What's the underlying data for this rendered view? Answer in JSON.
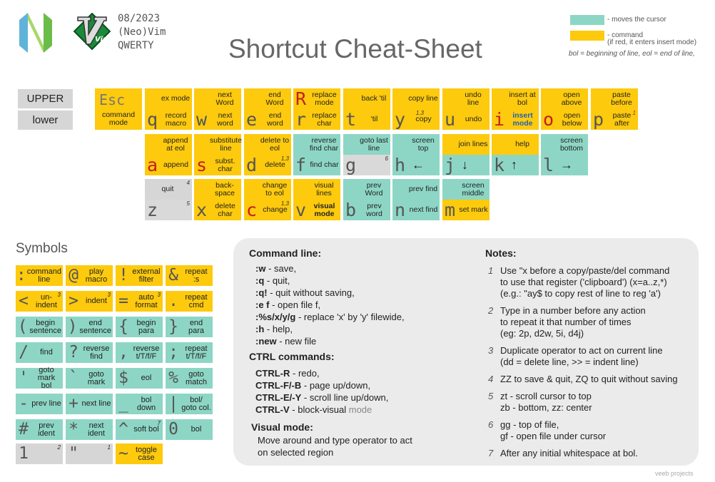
{
  "header": {
    "date": "08/2023",
    "editor": "(Neo)Vim",
    "layout": "QWERTY",
    "title": "Shortcut Cheat-Sheet",
    "logos": {
      "neovim": "neovim-logo",
      "vim": "vim-logo",
      "vim_text": "Vim"
    }
  },
  "legend": {
    "green_label": "- moves the cursor",
    "yellow_label": "- command",
    "yellow_sub": "(if red, it enters insert mode)",
    "bol_eol": "bol = beginning of line, eol = end of line,",
    "colors": {
      "green": "#8dd6c5",
      "yellow": "#fdca0d",
      "red": "#c41d1d"
    }
  },
  "case_labels": {
    "upper": "UPPER",
    "lower": "lower"
  },
  "keys": [
    {
      "id": "esc",
      "upper": "Esc",
      "lower": "command mode",
      "color": "y"
    },
    {
      "id": "q",
      "upper_text": "ex mode",
      "key": "q",
      "lower_text": "record macro",
      "color_u": "y",
      "color_l": "y"
    },
    {
      "id": "w",
      "upper_text": "next Word",
      "key": "w",
      "lower_text": "next word",
      "color_u": "y",
      "color_l": "y"
    },
    {
      "id": "e",
      "upper_text": "end Word",
      "key": "e",
      "lower_text": "end word",
      "color_u": "y",
      "color_l": "y"
    },
    {
      "id": "r",
      "upper_key": "R",
      "upper_text": "replace mode",
      "key": "r",
      "lower_text": "replace char",
      "color_u": "y",
      "color_l": "y"
    },
    {
      "id": "t",
      "upper_text": "back 'til",
      "key": "t",
      "lower_text": "'til",
      "color_u": "y",
      "color_l": "y"
    },
    {
      "id": "y",
      "upper_text": "copy line",
      "key": "y",
      "lower_text": "copy",
      "sup": "1,3",
      "color_u": "y",
      "color_l": "y"
    },
    {
      "id": "u",
      "upper_text": "undo line",
      "key": "u",
      "lower_text": "undo",
      "color_u": "y",
      "color_l": "y"
    },
    {
      "id": "i",
      "upper_text": "insert at bol",
      "key": "i",
      "lower_text": "insert mode",
      "color_u": "y",
      "color_l": "y"
    },
    {
      "id": "o",
      "upper_text": "open above",
      "key": "o",
      "lower_text": "open below",
      "color_u": "y",
      "color_l": "y"
    },
    {
      "id": "p",
      "upper_text": "paste before",
      "key": "p",
      "lower_text": "paste after",
      "sup": "1",
      "color_u": "y",
      "color_l": "y"
    }
  ],
  "row1": {
    "esc_upper": "Esc",
    "esc_lower": "command mode",
    "q": {
      "u": "ex mode",
      "k": "q",
      "l": "record macro"
    },
    "w": {
      "u": "next Word",
      "k": "w",
      "l": "next word"
    },
    "e": {
      "u": "end Word",
      "k": "e",
      "l": "end word"
    },
    "r": {
      "uk": "R",
      "u": "replace mode",
      "k": "r",
      "l": "replace char"
    },
    "t": {
      "u": "back 'til",
      "k": "t",
      "l": "'til"
    },
    "y": {
      "u": "copy line",
      "k": "y",
      "l": "copy",
      "sup": "1,3"
    },
    "u": {
      "u": "undo line",
      "k": "u",
      "l": "undo"
    },
    "i": {
      "u": "insert at bol",
      "k": "i",
      "l": "insert mode"
    },
    "o": {
      "u": "open above",
      "k": "o",
      "l": "open below"
    },
    "p": {
      "u": "paste before",
      "k": "p",
      "l": "paste after",
      "sup": "1"
    }
  },
  "row2": {
    "a": {
      "u": "append at eol",
      "k": "a",
      "l": "append"
    },
    "s": {
      "u": "substitute line",
      "k": "s",
      "l": "subst. char"
    },
    "d": {
      "u": "delete to eol",
      "k": "d",
      "l": "delete",
      "sup": "1,3"
    },
    "f": {
      "u": "reverse find char",
      "k": "f",
      "l": "find char"
    },
    "g": {
      "u": "goto last line",
      "k": "g",
      "sup": "6"
    },
    "h": {
      "u": "screen top",
      "k": "h",
      "arrow": "←"
    },
    "j": {
      "u": "join lines",
      "k": "j",
      "arrow": "↓"
    },
    "k": {
      "u": "help",
      "k": "k",
      "arrow": "↑"
    },
    "l": {
      "u": "screen bottom",
      "k": "l",
      "arrow": "→"
    }
  },
  "row3": {
    "z": {
      "u": "quit",
      "usup": "4",
      "k": "z",
      "sup": "5"
    },
    "x": {
      "u": "back-space",
      "k": "x",
      "l": "delete char"
    },
    "c": {
      "u": "change to eol",
      "k": "c",
      "l": "change",
      "sup": "1,3"
    },
    "v": {
      "u": "visual lines",
      "k": "v",
      "l": "visual mode"
    },
    "b": {
      "u": "prev Word",
      "k": "b",
      "l": "prev word"
    },
    "n": {
      "u": "prev find",
      "k": "n",
      "l": "next find"
    },
    "m": {
      "u": "screen middle",
      "k": "m",
      "l": "set mark"
    }
  },
  "symbols": {
    "title": "Symbols",
    "items": [
      {
        "k": ":",
        "t": "command line"
      },
      {
        "k": "@",
        "t": "play macro"
      },
      {
        "k": "!",
        "t": "external filter"
      },
      {
        "k": "&",
        "t": "repeat :s"
      },
      {
        "k": "<",
        "t": "un-indent",
        "sup": "3"
      },
      {
        "k": ">",
        "t": "indent",
        "sup": "3"
      },
      {
        "k": "=",
        "t": "auto format",
        "sup": "3"
      },
      {
        "k": ".",
        "t": "repeat cmd"
      },
      {
        "k": "(",
        "t": "begin sentence"
      },
      {
        "k": ")",
        "t": "end sentence"
      },
      {
        "k": "{",
        "t": "begin para"
      },
      {
        "k": "}",
        "t": "end para"
      },
      {
        "k": "/",
        "t": "find"
      },
      {
        "k": "?",
        "t": "reverse find"
      },
      {
        "k": ",",
        "t": "reverse t/T/f/F"
      },
      {
        "k": ";",
        "t": "repeat t/T/f/F"
      },
      {
        "k": "'",
        "t": "goto mark bol"
      },
      {
        "k": "`",
        "t": "goto mark"
      },
      {
        "k": "$",
        "t": "eol"
      },
      {
        "k": "%",
        "t": "goto match"
      },
      {
        "k": "-",
        "t": "prev line"
      },
      {
        "k": "+",
        "t": "next line"
      },
      {
        "k": "_",
        "t": "bol down"
      },
      {
        "k": "|",
        "t": "bol/ goto col."
      },
      {
        "k": "#",
        "t": "prev ident"
      },
      {
        "k": "*",
        "t": "next ident"
      },
      {
        "k": "^",
        "t": "soft bol",
        "sup": "7"
      },
      {
        "k": "0",
        "t": "bol"
      },
      {
        "k": "1",
        "t": "",
        "sup": "2"
      },
      {
        "k": "\"",
        "t": "",
        "sup": "1"
      },
      {
        "k": "~",
        "t": "toggle case"
      }
    ]
  },
  "command_line": {
    "title": "Command line:",
    "lines": [
      {
        "c": ":w",
        "d": " - save,"
      },
      {
        "c": ":q",
        "d": " - quit,"
      },
      {
        "c": ":q!",
        "d": " - quit without saving,"
      },
      {
        "c": ":e f",
        "d": " - open file f,"
      },
      {
        "c": ":%s/x/y/g",
        "d": " - replace 'x' by 'y' filewide,"
      },
      {
        "c": ":h",
        "d": " - help,"
      },
      {
        "c": ":new",
        "d": " - new file"
      }
    ]
  },
  "ctrl": {
    "title": "CTRL commands:",
    "lines": [
      {
        "c": "CTRL-R",
        "d": " - redo,"
      },
      {
        "c": "CTRL-F/-B",
        "d": " - page up/down,"
      },
      {
        "c": "CTRL-E/-Y",
        "d": " - scroll line up/down,"
      },
      {
        "c": "CTRL-V",
        "d": " - block-visual ",
        "g": "mode"
      }
    ]
  },
  "visual": {
    "title": "Visual mode:",
    "text1": "Move around and type operator to act",
    "text2": "on selected region"
  },
  "notes": {
    "title": "Notes:",
    "items": [
      {
        "n": "1",
        "l1": "Use \"x before a copy/paste/del command",
        "l2": "to use that register ('clipboard') (x=a..z,*)",
        "l3": "(e.g.: \"ay$ to copy rest of line to reg 'a')"
      },
      {
        "n": "2",
        "l1": "Type in a number before any action",
        "l2": "to repeat it that number of times",
        "l3": "(eg: 2p, d2w, 5i, d4j)"
      },
      {
        "n": "3",
        "l1": "Duplicate operator to act on current line",
        "l2": "(dd = delete line, >> = indent line)"
      },
      {
        "n": "4",
        "l1": "ZZ to save & quit, ZQ to quit without saving"
      },
      {
        "n": "5",
        "l1": "zt - scroll cursor to top",
        "l2": "zb - bottom, zz: center"
      },
      {
        "n": "6",
        "l1": "gg - top of file,",
        "l2": "gf - open file under cursor"
      },
      {
        "n": "7",
        "l1": "After any initial whitespace at bol."
      }
    ]
  },
  "footer": "veeb projects"
}
